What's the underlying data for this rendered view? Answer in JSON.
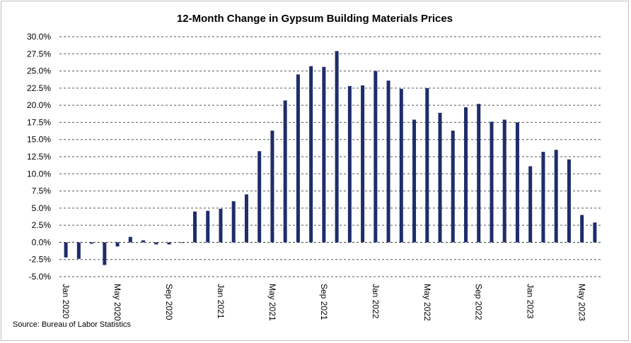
{
  "chart_data": {
    "type": "bar",
    "title": "12-Month Change in Gypsum Building Materials Prices",
    "source": "Source:  Bureau of Labor Statistics",
    "xlabel": "",
    "ylabel": "",
    "ylim": [
      -5.0,
      30.0
    ],
    "y_ticks": [
      "-5.0%",
      "-2.5%",
      "0.0%",
      "2.5%",
      "5.0%",
      "7.5%",
      "10.0%",
      "12.5%",
      "15.0%",
      "17.5%",
      "20.0%",
      "22.5%",
      "25.0%",
      "27.5%",
      "30.0%"
    ],
    "y_tick_values": [
      -5.0,
      -2.5,
      0.0,
      2.5,
      5.0,
      7.5,
      10.0,
      12.5,
      15.0,
      17.5,
      20.0,
      22.5,
      25.0,
      27.5,
      30.0
    ],
    "grid": true,
    "legend": "none",
    "bar_color": "#1f2d6b",
    "categories": [
      "Jan 2020",
      "Feb 2020",
      "Mar 2020",
      "Apr 2020",
      "May 2020",
      "Jun 2020",
      "Jul 2020",
      "Aug 2020",
      "Sep 2020",
      "Oct 2020",
      "Nov 2020",
      "Dec 2020",
      "Jan 2021",
      "Feb 2021",
      "Mar 2021",
      "Apr 2021",
      "May 2021",
      "Jun 2021",
      "Jul 2021",
      "Aug 2021",
      "Sep 2021",
      "Oct 2021",
      "Nov 2021",
      "Dec 2021",
      "Jan 2022",
      "Feb 2022",
      "Mar 2022",
      "Apr 2022",
      "May 2022",
      "Jun 2022",
      "Jul 2022",
      "Aug 2022",
      "Sep 2022",
      "Oct 2022",
      "Nov 2022",
      "Dec 2022",
      "Jan 2023",
      "Feb 2023",
      "Mar 2023",
      "Apr 2023",
      "May 2023",
      "Jun 2023"
    ],
    "x_tick_labels": [
      "Jan 2020",
      "May 2020",
      "Sep 2020",
      "Jan 2021",
      "May 2021",
      "Sep 2021",
      "Jan 2022",
      "May 2022",
      "Sep 2022",
      "Jan 2023",
      "May 2023"
    ],
    "x_tick_indices": [
      0,
      4,
      8,
      12,
      16,
      20,
      24,
      28,
      32,
      36,
      40
    ],
    "values": [
      -2.2,
      -2.4,
      -0.2,
      -3.3,
      -0.6,
      0.8,
      0.3,
      -0.3,
      -0.3,
      0.0,
      4.5,
      4.6,
      4.9,
      6.0,
      7.0,
      13.3,
      16.3,
      20.7,
      24.5,
      25.7,
      25.6,
      27.9,
      22.8,
      22.9,
      25.0,
      23.6,
      22.4,
      17.9,
      22.5,
      18.9,
      16.3,
      19.7,
      20.2,
      17.6,
      17.9,
      17.5,
      11.1,
      13.2,
      13.5,
      12.1,
      4.0,
      2.9
    ]
  }
}
